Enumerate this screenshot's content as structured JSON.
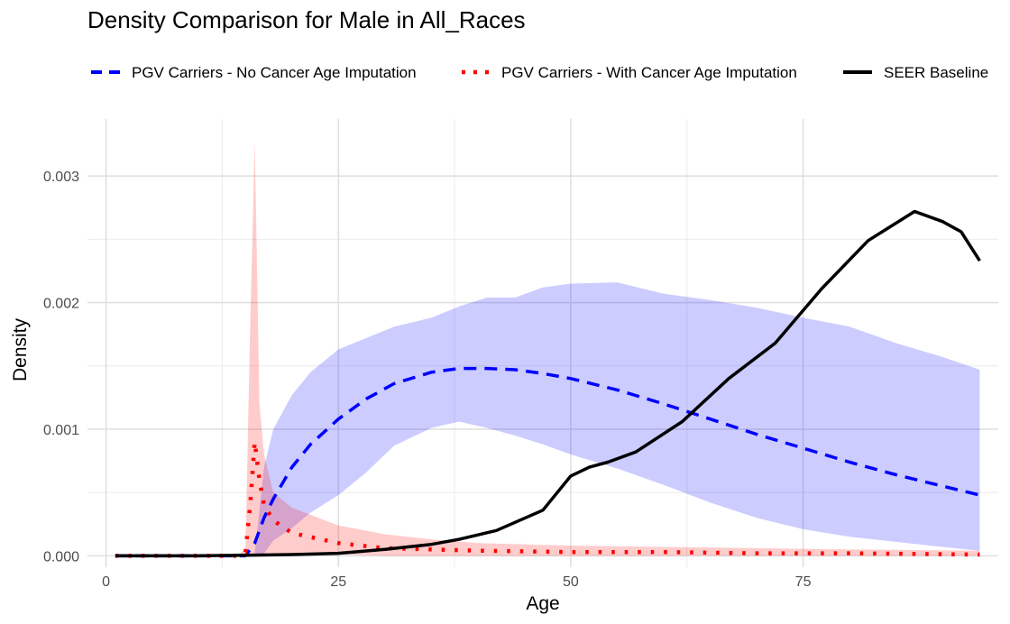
{
  "chart_data": {
    "type": "line",
    "title": "Density Comparison for Male in All_Races",
    "xlabel": "Age",
    "ylabel": "Density",
    "xlim": [
      -2,
      96
    ],
    "ylim": [
      -9e-05,
      0.00345
    ],
    "x_ticks": [
      0,
      25,
      50,
      75
    ],
    "x_tick_labels": [
      "0",
      "25",
      "50",
      "75"
    ],
    "y_ticks": [
      0,
      0.001,
      0.002,
      0.003
    ],
    "y_tick_labels": [
      "0.000",
      "0.001",
      "0.002",
      "0.003"
    ],
    "grid": true,
    "legend_position": "top",
    "series": [
      {
        "name": "PGV Carriers - No Cancer Age Imputation",
        "color": "#0000ff",
        "style": "dashed",
        "x": [
          1,
          5,
          10,
          15,
          16,
          17,
          18,
          20,
          22,
          25,
          28,
          31,
          35,
          38,
          41,
          44,
          47,
          50,
          55,
          60,
          65,
          70,
          75,
          80,
          85,
          90,
          94
        ],
        "y": [
          0,
          0,
          0,
          0,
          0.0001,
          0.0003,
          0.00045,
          0.0007,
          0.00088,
          0.00108,
          0.00124,
          0.00136,
          0.00145,
          0.00148,
          0.00148,
          0.00147,
          0.00144,
          0.0014,
          0.00131,
          0.0012,
          0.00108,
          0.00096,
          0.00085,
          0.00074,
          0.00064,
          0.00055,
          0.00048
        ],
        "ci_upper": [
          0,
          0,
          0,
          0,
          2e-05,
          0.0007,
          0.001,
          0.00127,
          0.00145,
          0.00163,
          0.00172,
          0.00181,
          0.00188,
          0.00197,
          0.00204,
          0.00204,
          0.00212,
          0.00215,
          0.00216,
          0.00207,
          0.00202,
          0.00196,
          0.00188,
          0.00181,
          0.00168,
          0.00157,
          0.00147
        ],
        "ci_lower": [
          0,
          0,
          0,
          0,
          0,
          2e-05,
          0.00012,
          0.00022,
          0.00034,
          0.00048,
          0.00066,
          0.00087,
          0.00101,
          0.00106,
          0.00101,
          0.00095,
          0.00088,
          0.0008,
          0.00069,
          0.00056,
          0.00042,
          0.0003,
          0.00021,
          0.00015,
          0.00011,
          7e-05,
          4e-05
        ]
      },
      {
        "name": "PGV Carriers - With Cancer Age Imputation",
        "color": "#ff0000",
        "style": "dotted",
        "x": [
          1,
          5,
          10,
          14,
          15,
          15.5,
          16,
          16.5,
          17,
          18,
          20,
          25,
          30,
          35,
          40,
          50,
          60,
          70,
          80,
          94
        ],
        "y": [
          0,
          0,
          0,
          0,
          3e-05,
          0.0004,
          0.0009,
          0.0006,
          0.0004,
          0.00028,
          0.00018,
          0.0001,
          6e-05,
          5e-05,
          4e-05,
          3e-05,
          3e-05,
          2e-05,
          2e-05,
          1e-05
        ],
        "ci_upper": [
          0,
          0,
          0,
          0,
          5e-05,
          0.0018,
          0.00328,
          0.0012,
          0.0008,
          0.0005,
          0.00038,
          0.00024,
          0.00017,
          0.00013,
          0.0001,
          8e-05,
          7e-05,
          6e-05,
          5e-05,
          4e-05
        ],
        "ci_lower": [
          0,
          0,
          0,
          0,
          0,
          0,
          2e-05,
          2e-05,
          2e-05,
          2e-05,
          1e-05,
          1e-05,
          0,
          0,
          0,
          0,
          0,
          0,
          0,
          0
        ]
      },
      {
        "name": "SEER Baseline",
        "color": "#000000",
        "style": "solid",
        "x": [
          1,
          5,
          10,
          15,
          20,
          25,
          30,
          35,
          38,
          42,
          47,
          50,
          52,
          54,
          57,
          62,
          67,
          72,
          77,
          82,
          87,
          90,
          92,
          94
        ],
        "y": [
          0,
          0,
          0,
          5e-06,
          1e-05,
          2e-05,
          5e-05,
          9e-05,
          0.00013,
          0.0002,
          0.00036,
          0.00063,
          0.0007,
          0.00074,
          0.00082,
          0.00106,
          0.0014,
          0.00168,
          0.00211,
          0.00249,
          0.00272,
          0.00264,
          0.00256,
          0.00233
        ]
      }
    ]
  }
}
